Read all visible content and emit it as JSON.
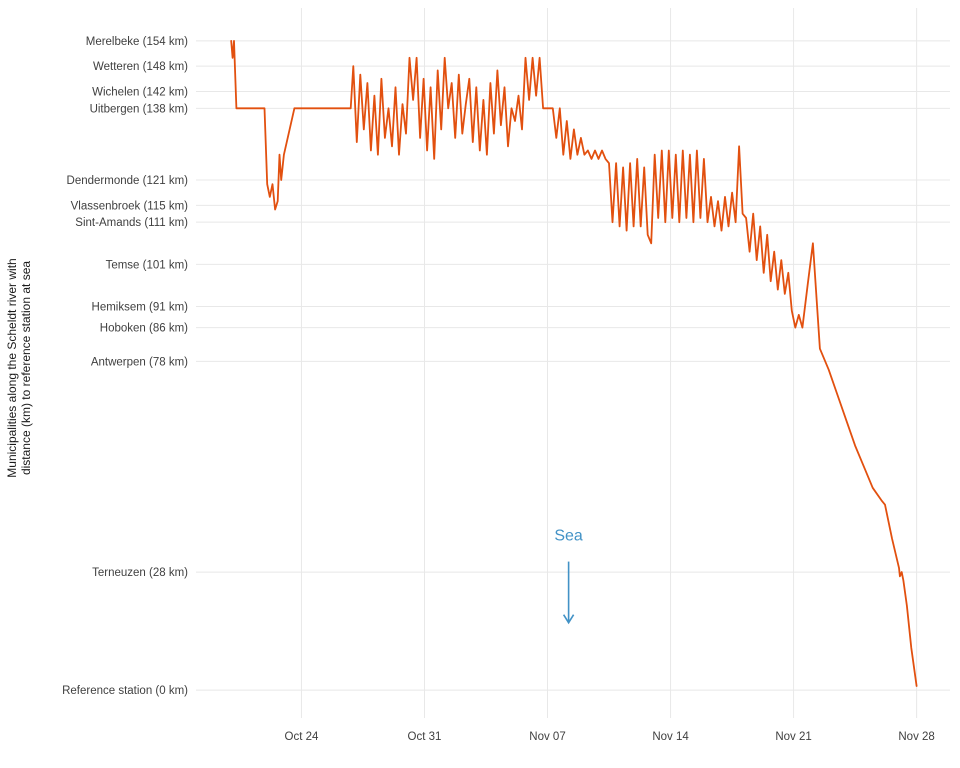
{
  "chart_data": {
    "type": "line",
    "title": "",
    "xlabel": "",
    "ylabel_lines": [
      "Municipalities along the Scheldt river with",
      "distance (km) to reference station at sea"
    ],
    "x_unit": "days since Oct 20",
    "x_domain": [
      -2,
      40.9
    ],
    "y_domain": [
      -6.6,
      161.8
    ],
    "grid": "on",
    "grid_color": "#e8e8e8",
    "background": "#ffffff",
    "tick_label_color": "#404040",
    "x_ticks": [
      {
        "label": "Oct 24",
        "t": 4
      },
      {
        "label": "Oct 31",
        "t": 11
      },
      {
        "label": "Nov 07",
        "t": 18
      },
      {
        "label": "Nov 14",
        "t": 25
      },
      {
        "label": "Nov 21",
        "t": 32
      },
      {
        "label": "Nov 28",
        "t": 39
      }
    ],
    "y_ticks": [
      {
        "label": "Merelbeke (154 km)",
        "km": 154
      },
      {
        "label": "Wetteren (148 km)",
        "km": 148
      },
      {
        "label": "Wichelen (142 km)",
        "km": 142
      },
      {
        "label": "Uitbergen (138 km)",
        "km": 138
      },
      {
        "label": "Dendermonde (121 km)",
        "km": 121
      },
      {
        "label": "Vlassenbroek (115 km)",
        "km": 115
      },
      {
        "label": "Sint-Amands (111 km)",
        "km": 111
      },
      {
        "label": "Temse (101 km)",
        "km": 101
      },
      {
        "label": "Hemiksem (91 km)",
        "km": 91
      },
      {
        "label": "Hoboken (86 km)",
        "km": 86
      },
      {
        "label": "Antwerpen (78 km)",
        "km": 78
      },
      {
        "label": "Terneuzen (28 km)",
        "km": 28
      },
      {
        "label": "Reference station (0 km)",
        "km": 0
      }
    ],
    "annotation": {
      "text": "Sea",
      "color": "#4292c6",
      "t": 19.2,
      "text_km": 35.5,
      "arrow_from_km": 30.5,
      "arrow_to_km": 16
    },
    "series": [
      {
        "name": "track-distance-to-sea",
        "color": "#e2500f",
        "points": [
          [
            0,
            154
          ],
          [
            0.08,
            150
          ],
          [
            0.16,
            154
          ],
          [
            0.3,
            138
          ],
          [
            1.9,
            138
          ],
          [
            2.05,
            120
          ],
          [
            2.2,
            117
          ],
          [
            2.35,
            120
          ],
          [
            2.5,
            114
          ],
          [
            2.65,
            116
          ],
          [
            2.75,
            127
          ],
          [
            2.85,
            121
          ],
          [
            3.0,
            127
          ],
          [
            3.6,
            138
          ],
          [
            6.8,
            138
          ],
          [
            6.95,
            148
          ],
          [
            7.15,
            130
          ],
          [
            7.35,
            146
          ],
          [
            7.55,
            133
          ],
          [
            7.75,
            144
          ],
          [
            7.95,
            128
          ],
          [
            8.15,
            141
          ],
          [
            8.35,
            127
          ],
          [
            8.55,
            145
          ],
          [
            8.75,
            131
          ],
          [
            8.95,
            138
          ],
          [
            9.15,
            129
          ],
          [
            9.35,
            143
          ],
          [
            9.55,
            127
          ],
          [
            9.75,
            139
          ],
          [
            9.95,
            132
          ],
          [
            10.15,
            150
          ],
          [
            10.35,
            140
          ],
          [
            10.55,
            150
          ],
          [
            10.75,
            131
          ],
          [
            10.95,
            145
          ],
          [
            11.15,
            128
          ],
          [
            11.35,
            143
          ],
          [
            11.55,
            126
          ],
          [
            11.75,
            147
          ],
          [
            11.95,
            133
          ],
          [
            12.15,
            150
          ],
          [
            12.35,
            138
          ],
          [
            12.55,
            144
          ],
          [
            12.75,
            131
          ],
          [
            12.95,
            146
          ],
          [
            13.15,
            132
          ],
          [
            13.35,
            139
          ],
          [
            13.55,
            145
          ],
          [
            13.75,
            130
          ],
          [
            13.95,
            143
          ],
          [
            14.15,
            128
          ],
          [
            14.35,
            140
          ],
          [
            14.55,
            127
          ],
          [
            14.75,
            144
          ],
          [
            14.95,
            132
          ],
          [
            15.15,
            147
          ],
          [
            15.35,
            134
          ],
          [
            15.55,
            143
          ],
          [
            15.75,
            129
          ],
          [
            15.95,
            138
          ],
          [
            16.15,
            135
          ],
          [
            16.35,
            141
          ],
          [
            16.55,
            133
          ],
          [
            16.75,
            150
          ],
          [
            16.95,
            140
          ],
          [
            17.15,
            150
          ],
          [
            17.35,
            141
          ],
          [
            17.55,
            150
          ],
          [
            17.75,
            138
          ],
          [
            18.3,
            138
          ],
          [
            18.5,
            131
          ],
          [
            18.7,
            138
          ],
          [
            18.9,
            127
          ],
          [
            19.1,
            135
          ],
          [
            19.3,
            126
          ],
          [
            19.5,
            133
          ],
          [
            19.7,
            127
          ],
          [
            19.9,
            131
          ],
          [
            20.1,
            127
          ],
          [
            20.3,
            128
          ],
          [
            20.5,
            126
          ],
          [
            20.7,
            128
          ],
          [
            20.9,
            126
          ],
          [
            21.1,
            128
          ],
          [
            21.3,
            126
          ],
          [
            21.5,
            125
          ],
          [
            21.7,
            111
          ],
          [
            21.9,
            125
          ],
          [
            22.1,
            110
          ],
          [
            22.3,
            124
          ],
          [
            22.5,
            109
          ],
          [
            22.7,
            125
          ],
          [
            22.9,
            110
          ],
          [
            23.1,
            126
          ],
          [
            23.3,
            110
          ],
          [
            23.5,
            124
          ],
          [
            23.7,
            108
          ],
          [
            23.9,
            106
          ],
          [
            24.1,
            127
          ],
          [
            24.3,
            112
          ],
          [
            24.5,
            128
          ],
          [
            24.7,
            111
          ],
          [
            24.9,
            128
          ],
          [
            25.1,
            112
          ],
          [
            25.3,
            127
          ],
          [
            25.5,
            111
          ],
          [
            25.7,
            128
          ],
          [
            25.9,
            112
          ],
          [
            26.1,
            127
          ],
          [
            26.3,
            111
          ],
          [
            26.5,
            128
          ],
          [
            26.7,
            112
          ],
          [
            26.9,
            126
          ],
          [
            27.1,
            111
          ],
          [
            27.3,
            117
          ],
          [
            27.5,
            110
          ],
          [
            27.7,
            116
          ],
          [
            27.9,
            109
          ],
          [
            28.1,
            117
          ],
          [
            28.3,
            110
          ],
          [
            28.5,
            118
          ],
          [
            28.7,
            111
          ],
          [
            28.9,
            129
          ],
          [
            29.1,
            113
          ],
          [
            29.3,
            112
          ],
          [
            29.5,
            104
          ],
          [
            29.7,
            113
          ],
          [
            29.9,
            102
          ],
          [
            30.1,
            110
          ],
          [
            30.3,
            99
          ],
          [
            30.5,
            108
          ],
          [
            30.7,
            97
          ],
          [
            30.9,
            104
          ],
          [
            31.1,
            95
          ],
          [
            31.3,
            102
          ],
          [
            31.5,
            94
          ],
          [
            31.7,
            99
          ],
          [
            31.9,
            90
          ],
          [
            32.1,
            86
          ],
          [
            32.3,
            89
          ],
          [
            32.5,
            86
          ],
          [
            32.8,
            96
          ],
          [
            33.1,
            106
          ],
          [
            33.5,
            81
          ],
          [
            34.0,
            76
          ],
          [
            34.5,
            70
          ],
          [
            35.0,
            64
          ],
          [
            35.5,
            58
          ],
          [
            36.0,
            53
          ],
          [
            36.5,
            48
          ],
          [
            37.0,
            45
          ],
          [
            37.2,
            44
          ],
          [
            37.6,
            36
          ],
          [
            38.0,
            29
          ],
          [
            38.05,
            27
          ],
          [
            38.15,
            28
          ],
          [
            38.25,
            26
          ],
          [
            38.45,
            20
          ],
          [
            38.7,
            10
          ],
          [
            39.0,
            1
          ]
        ]
      }
    ]
  }
}
